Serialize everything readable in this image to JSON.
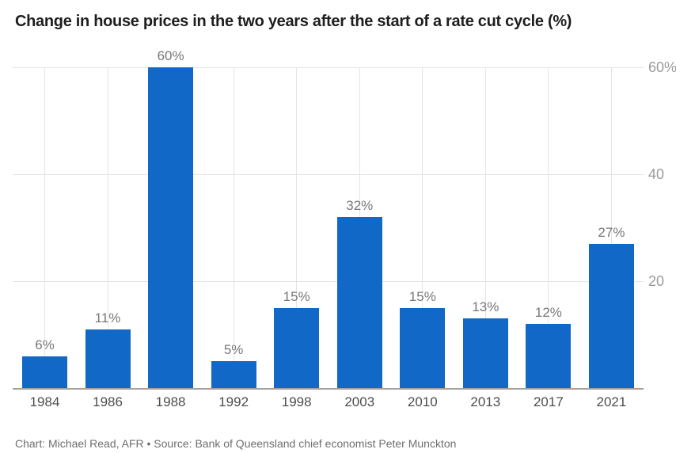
{
  "title": "Change in house prices in the two years after the start of a rate cut cycle (%)",
  "attribution": "Chart: Michael Read, AFR • Source: Bank of Queensland chief economist Peter Munckton",
  "chart_data": {
    "type": "bar",
    "title": "Change in house prices in the two years after the start of a rate cut cycle (%)",
    "categories": [
      "1984",
      "1986",
      "1988",
      "1992",
      "1998",
      "2003",
      "2010",
      "2013",
      "2017",
      "2021"
    ],
    "values": [
      6,
      11,
      60,
      5,
      15,
      32,
      15,
      13,
      12,
      27
    ],
    "bar_labels": [
      "6%",
      "11%",
      "60%",
      "5%",
      "15%",
      "32%",
      "15%",
      "13%",
      "12%",
      "27%"
    ],
    "xlabel": "",
    "ylabel": "",
    "ylim": [
      0,
      60
    ],
    "yticks": [
      {
        "value": 20,
        "label": "20"
      },
      {
        "value": 40,
        "label": "40"
      },
      {
        "value": 60,
        "label": "60%"
      }
    ],
    "legend": "none",
    "grid": {
      "horizontal": true,
      "vertical_at_categories": true
    },
    "axis_side": "right",
    "bar_color": "#1168C6"
  },
  "colors": {
    "bar": "#1168C6",
    "gridline": "#e4e4e4",
    "axis_line": "#a3a3a3",
    "ytick_label": "#9b9b9b",
    "xtick_label": "#4d4d4d",
    "value_label": "#787878",
    "title": "#1e1e1e",
    "attribution": "#6e6e6e"
  }
}
